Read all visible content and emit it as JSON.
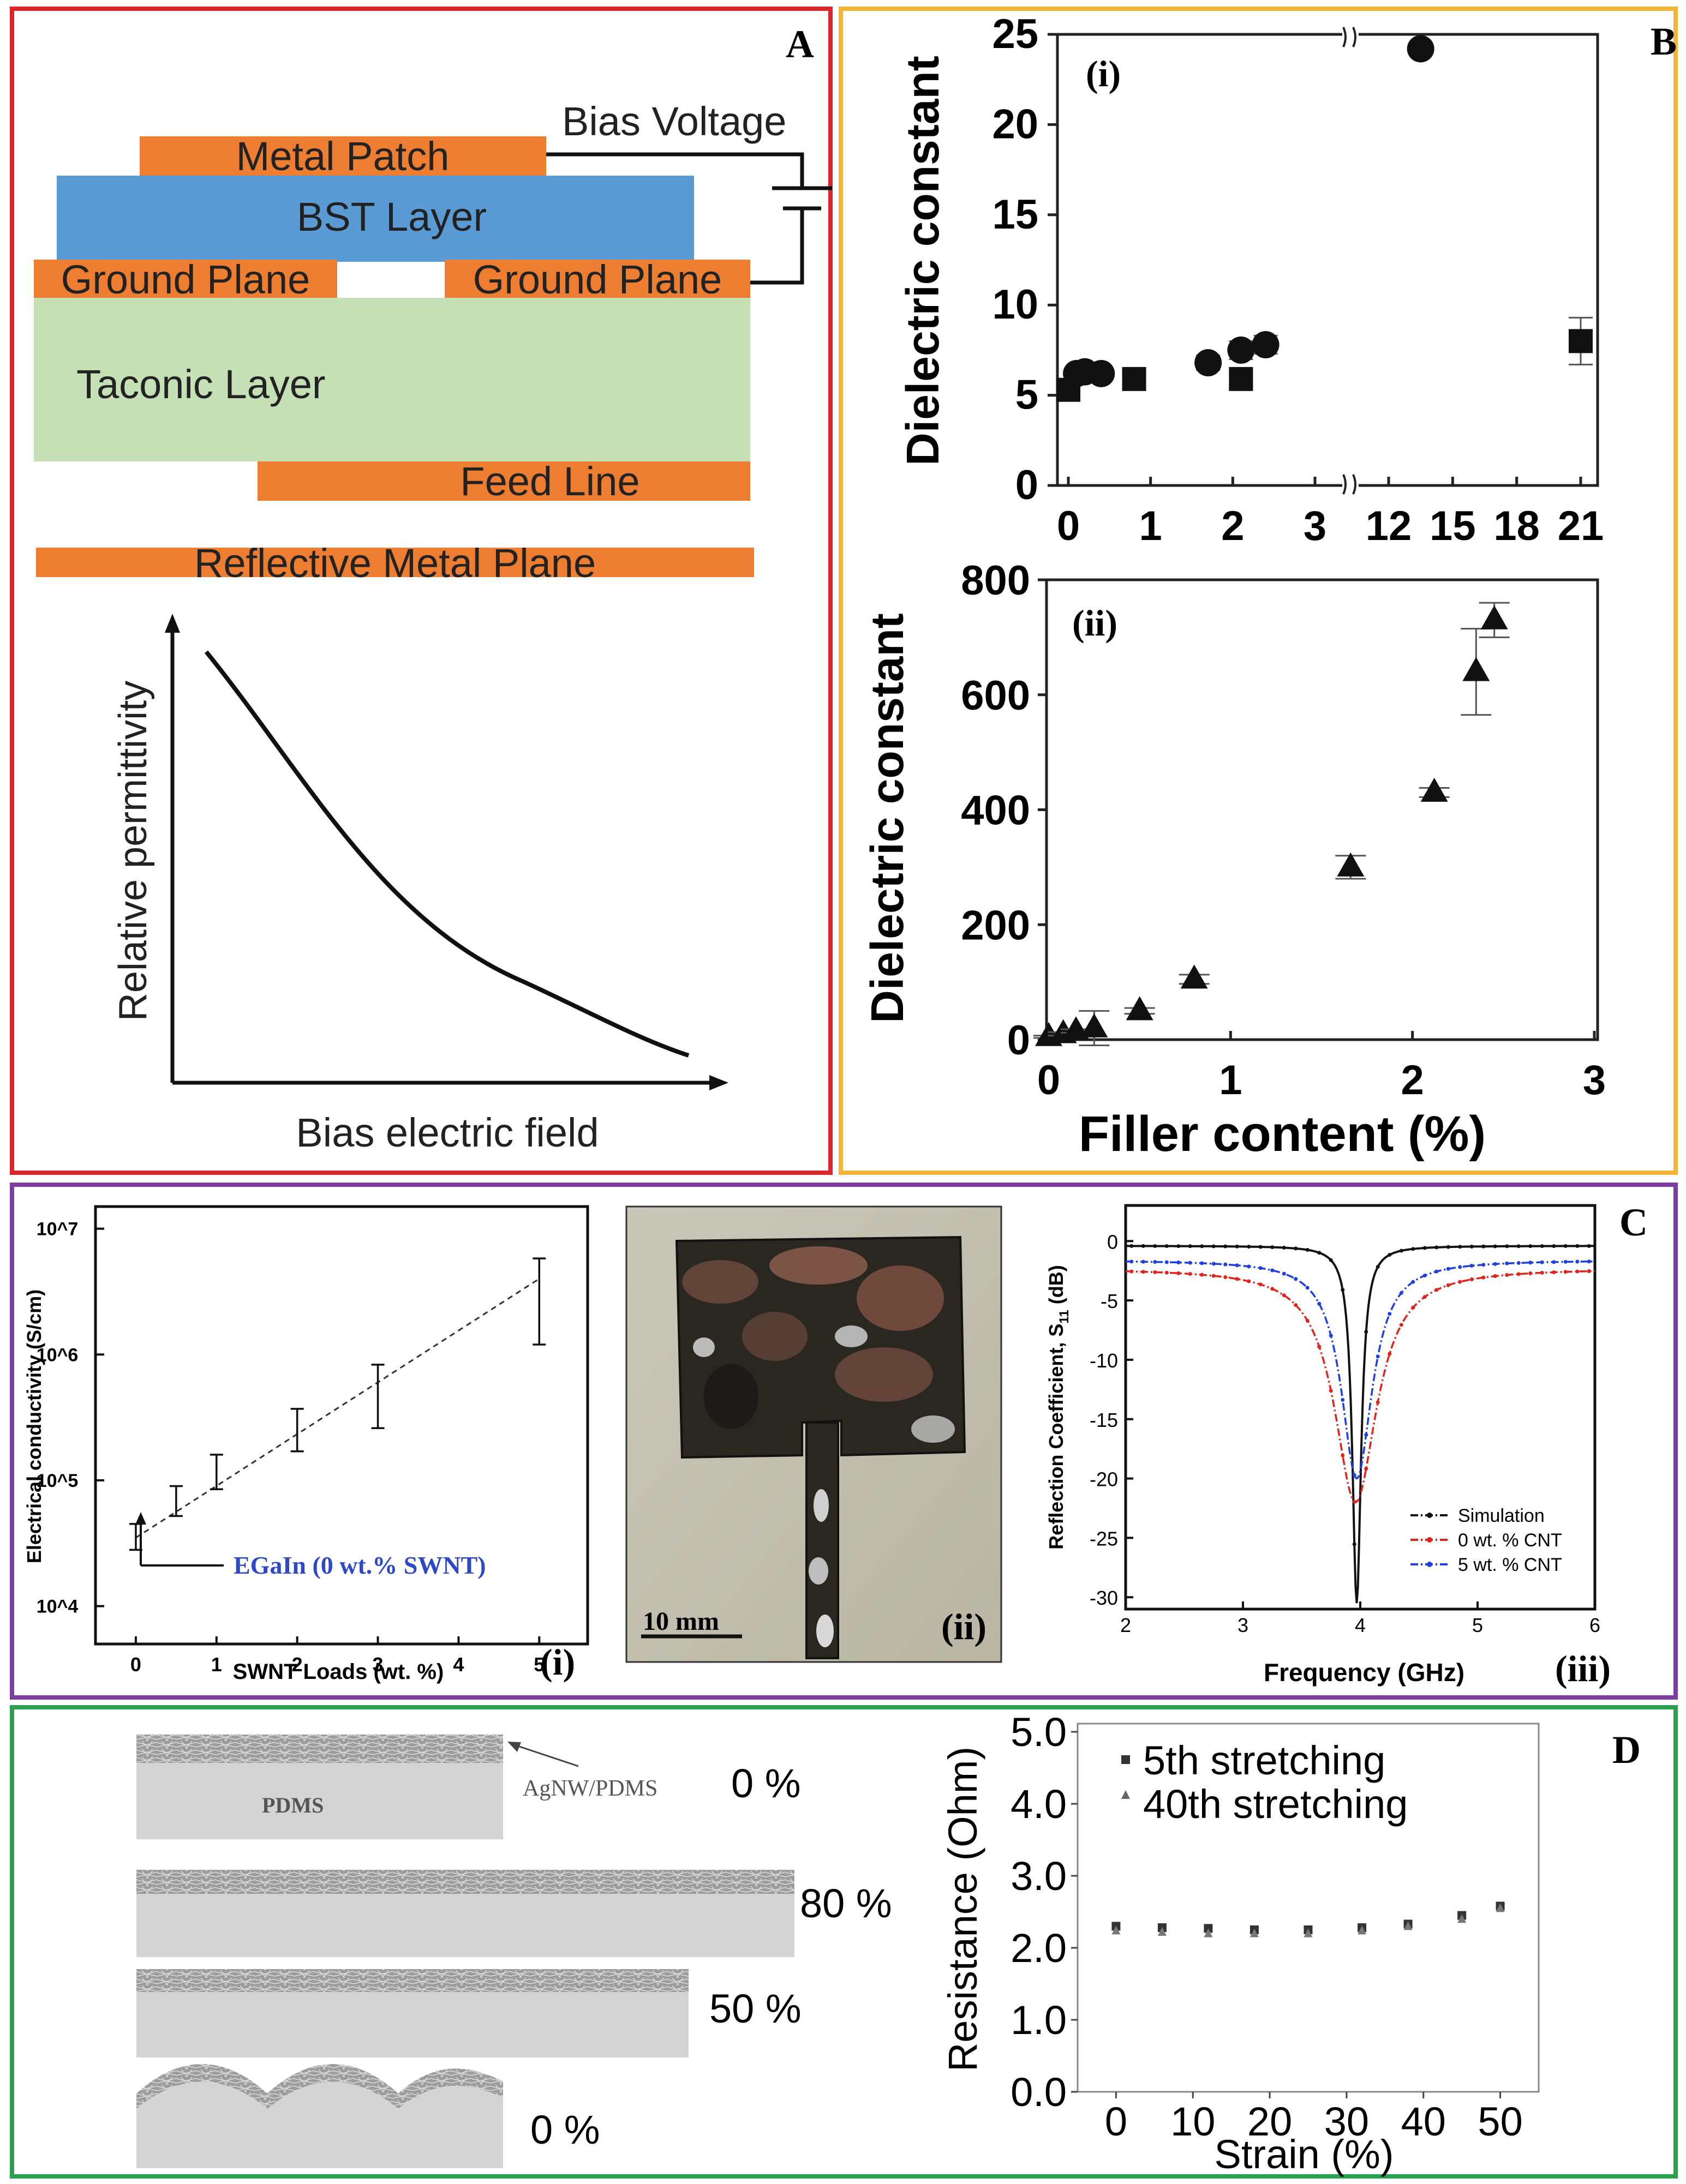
{
  "panelA": {
    "label": "A",
    "bias_voltage": "Bias Voltage",
    "layers": {
      "metal_patch": "Metal Patch",
      "bst": "BST Layer",
      "ground_left": "Ground Plane",
      "ground_right": "Ground Plane",
      "taconic": "Taconic Layer",
      "feed_line": "Feed Line",
      "reflective": "Reflective Metal Plane"
    },
    "graph": {
      "ylabel": "Relative permittivity",
      "xlabel": "Bias electric field"
    },
    "colors": {
      "frame": "#d9262b",
      "metal": "#ed7d31",
      "bst": "#5b9bd5",
      "taconic": "#c5e0b4"
    }
  },
  "panelB": {
    "label": "B",
    "frame_color": "#f2b53a",
    "xlabel": "Filler content (%)",
    "chart_data": [
      {
        "type": "scatter",
        "title": "(i)",
        "ylabel": "Dielectric constant",
        "ylim": [
          0,
          25
        ],
        "yticks": [
          "0",
          "5",
          "10",
          "15",
          "20",
          "25"
        ],
        "xticks": [
          "0",
          "1",
          "2",
          "3",
          "12",
          "15",
          "18",
          "21"
        ],
        "broken_x_axis": "3 | 12",
        "series": [
          {
            "name": "circles",
            "marker": "circle",
            "points": [
              [
                0.1,
                6.2
              ],
              [
                0.2,
                6.3
              ],
              [
                0.4,
                6.2
              ],
              [
                1.7,
                6.8
              ],
              [
                2.1,
                7.5
              ],
              [
                2.4,
                7.8
              ],
              [
                13.5,
                24.2
              ]
            ],
            "errors": [
              0.3,
              0.3,
              0.3,
              0.4,
              0.5,
              0.5,
              0.2
            ]
          },
          {
            "name": "squares",
            "marker": "square",
            "points": [
              [
                0.0,
                5.3
              ],
              [
                0.8,
                5.9
              ],
              [
                2.1,
                5.9
              ],
              [
                21.0,
                8.0
              ]
            ],
            "errors": [
              0.3,
              0.4,
              0.4,
              1.3
            ]
          }
        ]
      },
      {
        "type": "scatter",
        "title": "(ii)",
        "ylabel": "Dielectric constant",
        "xlim": [
          0,
          3
        ],
        "ylim": [
          0,
          800
        ],
        "xticks": [
          "0",
          "1",
          "2",
          "3"
        ],
        "yticks": [
          "0",
          "200",
          "400",
          "600",
          "800"
        ],
        "series": [
          {
            "name": "triangles",
            "marker": "triangle",
            "points": [
              [
                0.0,
                5
              ],
              [
                0.08,
                10
              ],
              [
                0.15,
                15
              ],
              [
                0.25,
                20
              ],
              [
                0.5,
                50
              ],
              [
                0.8,
                105
              ],
              [
                1.66,
                300
              ],
              [
                2.12,
                430
              ],
              [
                2.35,
                640
              ],
              [
                2.45,
                730
              ]
            ],
            "errors": [
              2,
              3,
              3,
              30,
              5,
              8,
              20,
              8,
              75,
              30
            ]
          }
        ]
      }
    ]
  },
  "panelC": {
    "label": "C",
    "frame_color": "#7b3fa0",
    "sub_i": {
      "tag": "(i)",
      "chart_data": {
        "type": "scatter",
        "xlabel": "SWNT Loads (wt. %)",
        "ylabel": "Electrical conductivity (S/cm)",
        "scale": "log",
        "xlim": [
          -0.5,
          5.6
        ],
        "ylim": [
          5000,
          15000000
        ],
        "xticks": [
          "0",
          "1",
          "2",
          "3",
          "4",
          "5"
        ],
        "yticks": [
          "10^4",
          "10^5",
          "10^6",
          "10^7"
        ],
        "x": [
          0,
          0.5,
          1,
          2,
          3,
          5
        ],
        "y": [
          35000,
          65000,
          110000,
          230000,
          500000,
          2500000
        ],
        "err_low": [
          28000,
          52000,
          85000,
          170000,
          260000,
          1200000
        ],
        "err_high": [
          45000,
          90000,
          160000,
          370000,
          830000,
          5800000
        ],
        "trend_line": [
          [
            0,
            35000
          ],
          [
            5,
            4000000
          ]
        ],
        "annotation": "EGaIn (0 wt.% SWNT)"
      }
    },
    "sub_ii": {
      "tag": "(ii)",
      "scale_bar": "10 mm"
    },
    "sub_iii": {
      "tag": "(iii)",
      "chart_data": {
        "type": "line",
        "xlabel": "Frequency (GHz)",
        "ylabel": "Reflection Coefficient, S",
        "ylabel_sub": "11",
        "ylabel_unit": " (dB)",
        "xlim": [
          2,
          6
        ],
        "ylim": [
          -31,
          3
        ],
        "xticks": [
          "2",
          "3",
          "4",
          "5",
          "6"
        ],
        "yticks": [
          "0",
          "-5",
          "-10",
          "-15",
          "-20",
          "-25",
          "-30"
        ],
        "legend": [
          "Simulation",
          "0 wt. % CNT",
          "5 wt. % CNT"
        ],
        "series": [
          {
            "name": "Simulation",
            "color": "#111111",
            "center": 3.97,
            "width": 0.045,
            "min": -30.5,
            "base": -0.4
          },
          {
            "name": "0 wt. % CNT",
            "color": "#e0241c",
            "center": 3.96,
            "width": 0.22,
            "min": -22.0,
            "base": -2.3
          },
          {
            "name": "5 wt. % CNT",
            "color": "#1f3fe0",
            "center": 3.97,
            "width": 0.16,
            "min": -20.0,
            "base": -1.6
          }
        ]
      }
    }
  },
  "panelD": {
    "label": "D",
    "frame_color": "#2e9e4f",
    "layers": {
      "pdms": "PDMS",
      "agnw": "AgNW/PDMS"
    },
    "strains": [
      "0 %",
      "80 %",
      "50 %",
      "0 %"
    ],
    "chart_data": {
      "type": "scatter",
      "xlabel": "Strain (%)",
      "ylabel": "Resistance (Ohm)",
      "xlim": [
        -5,
        55
      ],
      "ylim": [
        0,
        5
      ],
      "xticks": [
        "0",
        "10",
        "20",
        "30",
        "40",
        "50"
      ],
      "yticks": [
        "0.0",
        "1.0",
        "2.0",
        "3.0",
        "4.0",
        "5.0"
      ],
      "series": [
        {
          "name": "5th stretching",
          "marker": "square",
          "x": [
            0,
            6,
            12,
            18,
            25,
            32,
            38,
            45,
            50
          ],
          "y": [
            2.3,
            2.28,
            2.27,
            2.25,
            2.25,
            2.28,
            2.33,
            2.45,
            2.58
          ]
        },
        {
          "name": "40th stretching",
          "marker": "triangle",
          "x": [
            0,
            6,
            12,
            18,
            25,
            32,
            38,
            45,
            50
          ],
          "y": [
            2.24,
            2.22,
            2.2,
            2.2,
            2.2,
            2.24,
            2.3,
            2.4,
            2.55
          ]
        }
      ]
    }
  }
}
